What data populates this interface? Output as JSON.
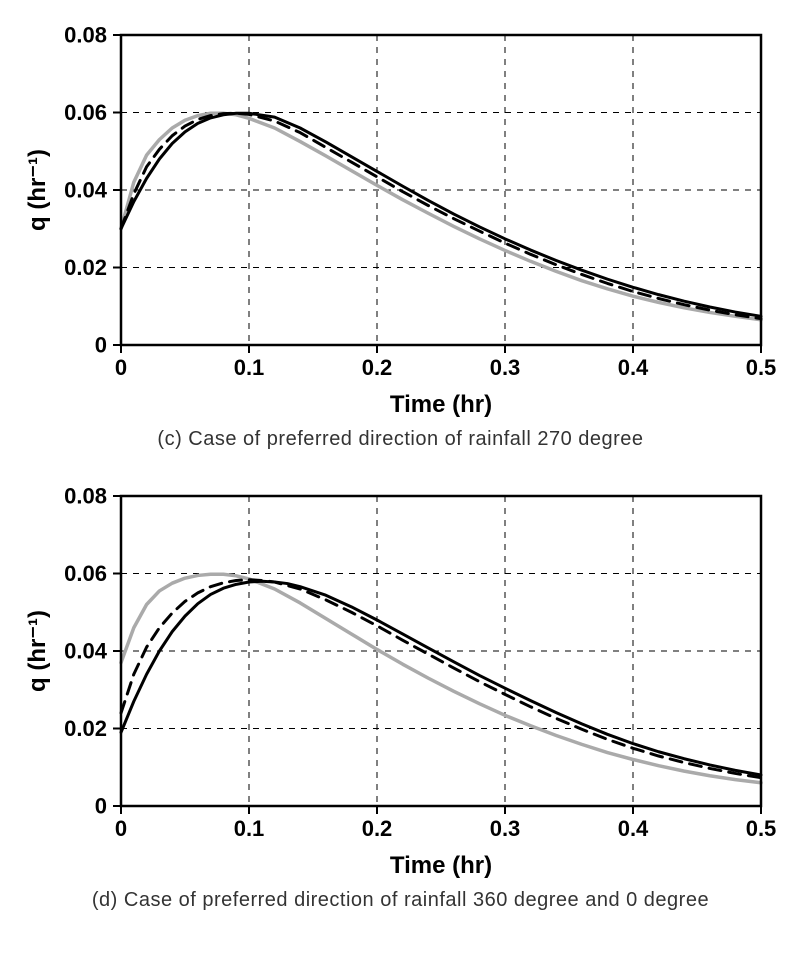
{
  "figure": {
    "background_color": "#ffffff",
    "panels": [
      {
        "key": "c",
        "caption": "(c) Case of preferred direction of rainfall 270 degree",
        "chart": {
          "type": "line",
          "xlabel": "Time (hr)",
          "ylabel": "q (hr⁻¹)",
          "xlabel_fontsize": 24,
          "ylabel_fontsize": 24,
          "tick_fontsize": 22,
          "xlim": [
            0,
            0.5
          ],
          "ylim": [
            0,
            0.08
          ],
          "xtick_step": 0.1,
          "ytick_step": 0.02,
          "xticks": [
            "0",
            "0.1",
            "0.2",
            "0.3",
            "0.4",
            "0.5"
          ],
          "yticks": [
            "0",
            "0.02",
            "0.04",
            "0.06",
            "0.08"
          ],
          "grid_color": "#000000",
          "grid_dash": "6,6",
          "grid_width": 1,
          "border_color": "#000000",
          "border_width": 2.5,
          "tick_len": 8,
          "series": [
            {
              "name": "series-gray",
              "color": "#aaaaaa",
              "width": 3.5,
              "dash": "none",
              "x": [
                0,
                0.01,
                0.02,
                0.03,
                0.04,
                0.05,
                0.06,
                0.07,
                0.08,
                0.09,
                0.1,
                0.12,
                0.14,
                0.16,
                0.18,
                0.2,
                0.22,
                0.24,
                0.26,
                0.28,
                0.3,
                0.32,
                0.34,
                0.36,
                0.38,
                0.4,
                0.42,
                0.44,
                0.46,
                0.48,
                0.5
              ],
              "y": [
                0.03,
                0.042,
                0.049,
                0.053,
                0.056,
                0.058,
                0.0592,
                0.0598,
                0.0598,
                0.0594,
                0.0585,
                0.056,
                0.0525,
                0.0488,
                0.045,
                0.0412,
                0.0375,
                0.034,
                0.0306,
                0.0274,
                0.0244,
                0.0216,
                0.019,
                0.0166,
                0.0145,
                0.0126,
                0.011,
                0.0096,
                0.0084,
                0.0074,
                0.0065
              ]
            },
            {
              "name": "series-dashed",
              "color": "#000000",
              "width": 3,
              "dash": "12,8",
              "x": [
                0,
                0.01,
                0.02,
                0.03,
                0.04,
                0.05,
                0.06,
                0.07,
                0.08,
                0.09,
                0.1,
                0.12,
                0.14,
                0.16,
                0.18,
                0.2,
                0.22,
                0.24,
                0.26,
                0.28,
                0.3,
                0.32,
                0.34,
                0.36,
                0.38,
                0.4,
                0.42,
                0.44,
                0.46,
                0.48,
                0.5
              ],
              "y": [
                0.03,
                0.039,
                0.046,
                0.0505,
                0.054,
                0.0565,
                0.0582,
                0.0592,
                0.0597,
                0.0598,
                0.0595,
                0.0578,
                0.0548,
                0.051,
                0.0472,
                0.0434,
                0.0396,
                0.036,
                0.0326,
                0.0294,
                0.0263,
                0.0234,
                0.0207,
                0.0182,
                0.0159,
                0.0138,
                0.012,
                0.0104,
                0.009,
                0.0078,
                0.0068
              ]
            },
            {
              "name": "series-solid",
              "color": "#000000",
              "width": 3,
              "dash": "none",
              "x": [
                0,
                0.01,
                0.02,
                0.03,
                0.04,
                0.05,
                0.06,
                0.07,
                0.08,
                0.09,
                0.1,
                0.12,
                0.14,
                0.16,
                0.18,
                0.2,
                0.22,
                0.24,
                0.26,
                0.28,
                0.3,
                0.32,
                0.34,
                0.36,
                0.38,
                0.4,
                0.42,
                0.44,
                0.46,
                0.48,
                0.5
              ],
              "y": [
                0.03,
                0.037,
                0.043,
                0.048,
                0.052,
                0.055,
                0.0572,
                0.0586,
                0.0594,
                0.0598,
                0.0598,
                0.0588,
                0.056,
                0.0524,
                0.0486,
                0.0448,
                0.041,
                0.0373,
                0.0338,
                0.0305,
                0.0274,
                0.0245,
                0.0218,
                0.0193,
                0.017,
                0.0149,
                0.013,
                0.0113,
                0.0098,
                0.0085,
                0.0074
              ]
            }
          ]
        }
      },
      {
        "key": "d",
        "caption": "(d) Case of preferred direction of rainfall 360 degree and 0 degree",
        "chart": {
          "type": "line",
          "xlabel": "Time (hr)",
          "ylabel": "q (hr⁻¹)",
          "xlabel_fontsize": 24,
          "ylabel_fontsize": 24,
          "tick_fontsize": 22,
          "xlim": [
            0,
            0.5
          ],
          "ylim": [
            0,
            0.08
          ],
          "xtick_step": 0.1,
          "ytick_step": 0.02,
          "xticks": [
            "0",
            "0.1",
            "0.2",
            "0.3",
            "0.4",
            "0.5"
          ],
          "yticks": [
            "0",
            "0.02",
            "0.04",
            "0.06",
            "0.08"
          ],
          "grid_color": "#000000",
          "grid_dash": "6,6",
          "grid_width": 1,
          "border_color": "#000000",
          "border_width": 2.5,
          "tick_len": 8,
          "series": [
            {
              "name": "series-gray",
              "color": "#aaaaaa",
              "width": 3.5,
              "dash": "none",
              "x": [
                0,
                0.01,
                0.02,
                0.03,
                0.04,
                0.05,
                0.06,
                0.07,
                0.08,
                0.09,
                0.1,
                0.12,
                0.14,
                0.16,
                0.18,
                0.2,
                0.22,
                0.24,
                0.26,
                0.28,
                0.3,
                0.32,
                0.34,
                0.36,
                0.38,
                0.4,
                0.42,
                0.44,
                0.46,
                0.48,
                0.5
              ],
              "y": [
                0.037,
                0.046,
                0.052,
                0.0555,
                0.0575,
                0.0588,
                0.0595,
                0.0598,
                0.0598,
                0.0594,
                0.0586,
                0.056,
                0.0524,
                0.0484,
                0.0444,
                0.0404,
                0.0366,
                0.033,
                0.0296,
                0.0264,
                0.0234,
                0.0207,
                0.0182,
                0.0159,
                0.0138,
                0.012,
                0.0104,
                0.009,
                0.0078,
                0.0068,
                0.006
              ]
            },
            {
              "name": "series-dashed",
              "color": "#000000",
              "width": 3,
              "dash": "12,8",
              "x": [
                0,
                0.01,
                0.02,
                0.03,
                0.04,
                0.05,
                0.06,
                0.07,
                0.08,
                0.09,
                0.1,
                0.11,
                0.12,
                0.14,
                0.16,
                0.18,
                0.2,
                0.22,
                0.24,
                0.26,
                0.28,
                0.3,
                0.32,
                0.34,
                0.36,
                0.38,
                0.4,
                0.42,
                0.44,
                0.46,
                0.48,
                0.5
              ],
              "y": [
                0.024,
                0.034,
                0.041,
                0.046,
                0.0498,
                0.0528,
                0.055,
                0.0566,
                0.0576,
                0.0582,
                0.0584,
                0.0582,
                0.0578,
                0.056,
                0.0532,
                0.05,
                0.0465,
                0.0428,
                0.0392,
                0.0356,
                0.0321,
                0.0288,
                0.0256,
                0.0226,
                0.0198,
                0.0172,
                0.0149,
                0.0129,
                0.0112,
                0.0097,
                0.0084,
                0.0073
              ]
            },
            {
              "name": "series-solid",
              "color": "#000000",
              "width": 3,
              "dash": "none",
              "x": [
                0,
                0.01,
                0.02,
                0.03,
                0.04,
                0.05,
                0.06,
                0.07,
                0.08,
                0.09,
                0.1,
                0.11,
                0.12,
                0.13,
                0.14,
                0.16,
                0.18,
                0.2,
                0.22,
                0.24,
                0.26,
                0.28,
                0.3,
                0.32,
                0.34,
                0.36,
                0.38,
                0.4,
                0.42,
                0.44,
                0.46,
                0.48,
                0.5
              ],
              "y": [
                0.019,
                0.027,
                0.034,
                0.04,
                0.045,
                0.049,
                0.0522,
                0.0546,
                0.0562,
                0.0572,
                0.0578,
                0.058,
                0.0578,
                0.0574,
                0.0566,
                0.0544,
                0.0514,
                0.048,
                0.0444,
                0.0408,
                0.0372,
                0.0337,
                0.0304,
                0.0272,
                0.0241,
                0.0212,
                0.0185,
                0.0161,
                0.014,
                0.0122,
                0.0106,
                0.0092,
                0.008
              ]
            }
          ]
        }
      }
    ]
  }
}
